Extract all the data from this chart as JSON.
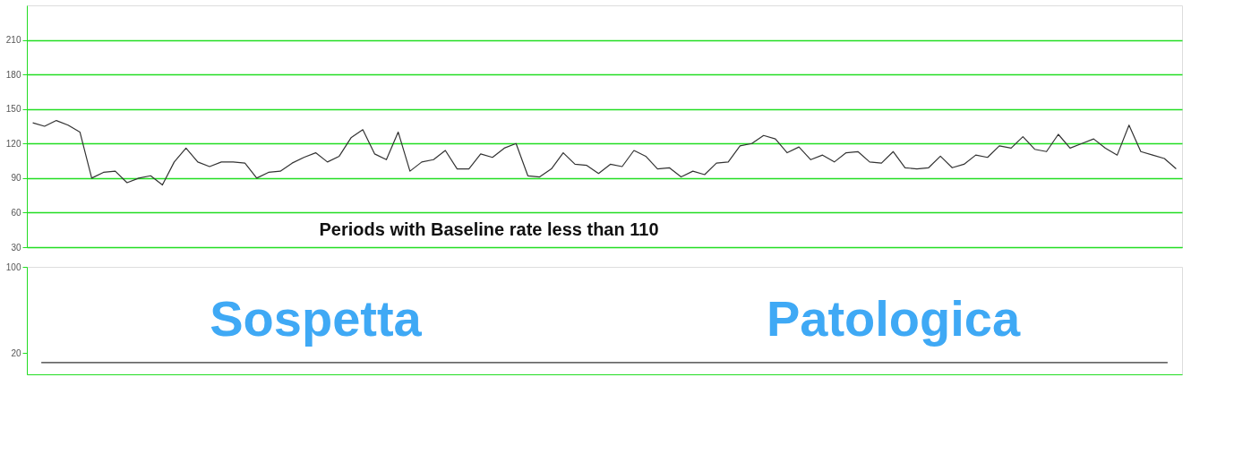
{
  "chart_data": [
    {
      "type": "line",
      "categories": [
        null,
        null,
        null,
        null,
        null,
        null,
        null,
        null,
        null,
        null,
        null,
        null,
        null,
        null,
        null,
        null,
        null,
        null,
        null,
        null,
        null,
        null,
        null,
        null,
        null,
        null,
        null,
        null,
        null,
        null,
        null,
        null,
        null,
        null,
        null,
        null,
        null,
        null,
        null,
        null,
        null,
        null,
        null,
        null,
        null,
        null,
        null,
        null,
        null,
        null,
        null,
        null,
        null,
        null,
        null,
        null,
        null,
        null,
        null,
        null,
        null,
        null,
        null,
        null,
        null,
        null,
        null,
        null,
        null,
        null,
        null,
        null,
        null,
        null,
        null,
        null,
        null,
        null,
        null,
        null,
        null,
        null,
        null,
        null,
        null,
        null,
        null,
        null,
        null,
        null,
        null,
        null,
        null,
        null,
        null,
        null,
        null,
        null
      ],
      "values": [
        138,
        135,
        140,
        136,
        130,
        90,
        95,
        96,
        86,
        90,
        92,
        84,
        104,
        116,
        104,
        100,
        104,
        104,
        103,
        90,
        95,
        96,
        103,
        108,
        112,
        104,
        109,
        125,
        132,
        111,
        106,
        130,
        96,
        104,
        106,
        114,
        98,
        98,
        111,
        108,
        116,
        120,
        92,
        91,
        98,
        112,
        102,
        101,
        94,
        102,
        100,
        114,
        109,
        98,
        99,
        91,
        96,
        93,
        103,
        104,
        118,
        120,
        127,
        124,
        112,
        117,
        106,
        110,
        104,
        112,
        113,
        104,
        103,
        113,
        99,
        98,
        99,
        109,
        99,
        102,
        110,
        108,
        118,
        116,
        126,
        115,
        113,
        128,
        116,
        120,
        124,
        116,
        110,
        136,
        113,
        110,
        107,
        98
      ],
      "color": "#333333",
      "ylim": [
        30,
        240
      ],
      "yticks": [
        30,
        60,
        90,
        120,
        150,
        180,
        210
      ],
      "grid": "y",
      "tick_labels": "y",
      "annotations": [
        "Periods with Baseline rate less than 110"
      ]
    },
    {
      "type": "line",
      "categories": [
        null,
        null,
        null,
        null,
        null,
        null,
        null,
        null,
        null,
        null,
        null,
        null,
        null,
        null,
        null,
        null,
        null,
        null,
        null,
        null,
        null,
        null,
        null,
        null,
        null,
        null,
        null,
        null,
        null,
        null,
        null,
        null,
        null,
        null,
        null,
        null,
        null,
        null,
        null,
        null
      ],
      "values": [
        11,
        11,
        11,
        11,
        11,
        11,
        11,
        11,
        11,
        11,
        11,
        11,
        11,
        11,
        11,
        11,
        11,
        11,
        11,
        11,
        11,
        11,
        11,
        11,
        11,
        11,
        11,
        11,
        11,
        11,
        11,
        11,
        11,
        11,
        11,
        11,
        11,
        11,
        11,
        11
      ],
      "color": "#333333",
      "ylim": [
        0,
        100
      ],
      "yticks": [
        20,
        100
      ],
      "tick_labels": "y",
      "annotations": [
        "Sospetta",
        "Patologica"
      ]
    }
  ]
}
